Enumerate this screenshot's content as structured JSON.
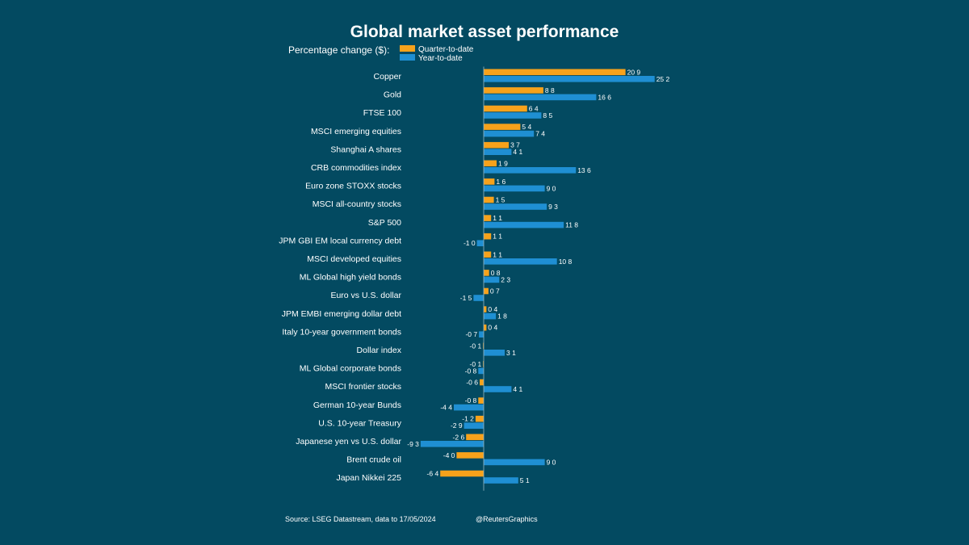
{
  "chart_data": {
    "type": "bar",
    "orientation": "horizontal",
    "title": "Global market asset performance",
    "subtitle": "Percentage change ($):",
    "legend_placement": "top",
    "grid": false,
    "categories": [
      "Copper",
      "Gold",
      "FTSE 100",
      "MSCI emerging equities",
      "Shanghai A shares",
      "CRB commodities index",
      "Euro zone STOXX stocks",
      "MSCI all-country stocks",
      "S&P 500",
      "JPM GBI EM local currency debt",
      "MSCI developed equities",
      "ML Global high yield bonds",
      "Euro vs U.S. dollar",
      "JPM EMBI emerging dollar debt",
      "Italy 10-year government bonds",
      "Dollar index",
      "ML Global corporate bonds",
      "MSCI frontier stocks",
      "German 10-year Bunds",
      "U.S. 10-year Treasury",
      "Japanese yen vs U.S. dollar",
      "Brent crude oil",
      "Japan Nikkei 225"
    ],
    "series": [
      {
        "name": "Quarter-to-date",
        "color": "#f7a21b",
        "values": [
          20.9,
          8.8,
          6.4,
          5.4,
          3.7,
          1.9,
          1.6,
          1.5,
          1.1,
          1.1,
          1.1,
          0.8,
          0.7,
          0.4,
          0.4,
          -0.1,
          -0.1,
          -0.6,
          -0.8,
          -1.2,
          -2.6,
          -4.0,
          -6.4
        ],
        "labels": [
          "20 9",
          "8 8",
          "6 4",
          "5 4",
          "3 7",
          "1 9",
          "1 6",
          "1 5",
          "1 1",
          "1 1",
          "1 1",
          "0 8",
          "0 7",
          "0 4",
          "0 4",
          "-0 1",
          "-0 1",
          "-0 6",
          "-0 8",
          "-1 2",
          "-2 6",
          "-4 0",
          "-6 4"
        ]
      },
      {
        "name": "Year-to-date",
        "color": "#1f8fd3",
        "values": [
          25.2,
          16.6,
          8.5,
          7.4,
          4.1,
          13.6,
          9.0,
          9.3,
          11.8,
          -1.0,
          10.8,
          2.3,
          -1.5,
          1.8,
          -0.7,
          3.1,
          -0.8,
          4.1,
          -4.4,
          -2.9,
          -9.3,
          9.0,
          5.1
        ],
        "labels": [
          "25 2",
          "16 6",
          "8 5",
          "7 4",
          "4 1",
          "13 6",
          "9 0",
          "9 3",
          "11 8",
          "-1 0",
          "10 8",
          "2 3",
          "-1 5",
          "1 8",
          "-0 7",
          "3 1",
          "-0 8",
          "4 1",
          "-4 4",
          "-2 9",
          "-9 3",
          "9 0",
          "5 1"
        ]
      }
    ],
    "xlim": [
      -9.3,
      25.2
    ]
  },
  "footer": {
    "source": "Source: LSEG Datastream, data to 17/05/2024",
    "credit": "@ReutersGraphics"
  },
  "colors": {
    "background": "#034a61",
    "axis": "#9ab8c4"
  }
}
